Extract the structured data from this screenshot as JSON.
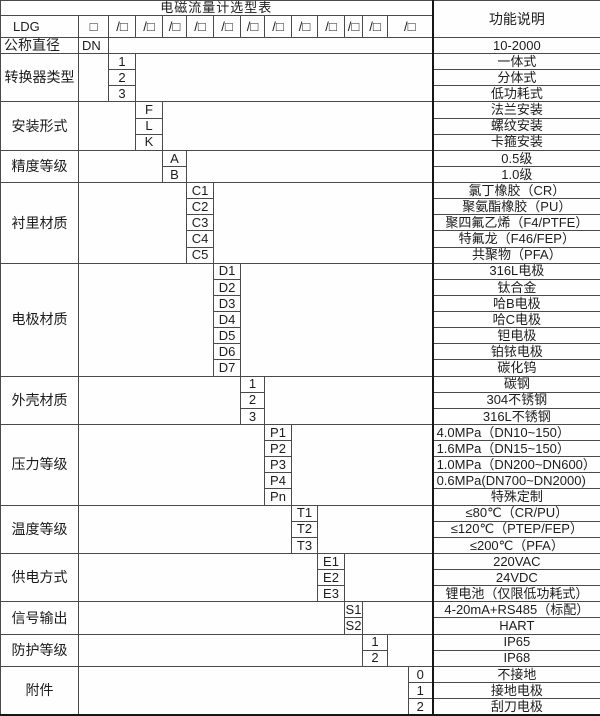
{
  "title": "电磁流量计选型表",
  "function_header": "功能说明",
  "model_row": {
    "prefix": "LDG",
    "box": "□",
    "slot": "/□",
    "slot_count": 12
  },
  "diameter": {
    "label": "公称直径",
    "code": "DN",
    "desc": "10-2000"
  },
  "groups": [
    {
      "label": "转换器类型",
      "col": 1,
      "items": [
        {
          "code": "1",
          "desc": "一体式"
        },
        {
          "code": "2",
          "desc": "分体式"
        },
        {
          "code": "3",
          "desc": "低功耗式"
        }
      ]
    },
    {
      "label": "安装形式",
      "col": 2,
      "items": [
        {
          "code": "F",
          "desc": "法兰安装"
        },
        {
          "code": "L",
          "desc": "螺纹安装"
        },
        {
          "code": "K",
          "desc": "卡箍安装"
        }
      ]
    },
    {
      "label": "精度等级",
      "col": 3,
      "items": [
        {
          "code": "A",
          "desc": "0.5级"
        },
        {
          "code": "B",
          "desc": "1.0级"
        }
      ]
    },
    {
      "label": "衬里材质",
      "col": 4,
      "items": [
        {
          "code": "C1",
          "desc": "氯丁橡胶（CR）"
        },
        {
          "code": "C2",
          "desc": "聚氨酯橡胶（PU）"
        },
        {
          "code": "C3",
          "desc": "聚四氟乙烯（F4/PTFE）"
        },
        {
          "code": "C4",
          "desc": "特氟龙（F46/FEP）"
        },
        {
          "code": "C5",
          "desc": "共聚物（PFA）"
        }
      ]
    },
    {
      "label": "电极材质",
      "col": 5,
      "items": [
        {
          "code": "D1",
          "desc": "316L电极"
        },
        {
          "code": "D2",
          "desc": "钛合金"
        },
        {
          "code": "D3",
          "desc": "哈B电极"
        },
        {
          "code": "D4",
          "desc": "哈C电极"
        },
        {
          "code": "D5",
          "desc": "钽电极"
        },
        {
          "code": "D6",
          "desc": "铂铱电极"
        },
        {
          "code": "D7",
          "desc": "碳化钨"
        }
      ]
    },
    {
      "label": "外壳材质",
      "col": 6,
      "items": [
        {
          "code": "1",
          "desc": "碳钢"
        },
        {
          "code": "2",
          "desc": "304不锈钢"
        },
        {
          "code": "3",
          "desc": "316L不锈钢"
        }
      ]
    },
    {
      "label": "压力等级",
      "col": 7,
      "items": [
        {
          "code": "P1",
          "desc": "4.0MPa（DN10~150）",
          "align": "left"
        },
        {
          "code": "P2",
          "desc": "1.6MPa（DN15~150）",
          "align": "left"
        },
        {
          "code": "P3",
          "desc": "1.0MPa（DN200~DN600）",
          "align": "left"
        },
        {
          "code": "P4",
          "desc": "0.6MPa(DN700~DN2000)",
          "align": "left"
        },
        {
          "code": "Pn",
          "desc": "特殊定制"
        }
      ]
    },
    {
      "label": "温度等级",
      "col": 8,
      "items": [
        {
          "code": "T1",
          "desc": "≤80℃（CR/PU）"
        },
        {
          "code": "T2",
          "desc": "≤120℃（PTEP/FEP）"
        },
        {
          "code": "T3",
          "desc": "≤200℃（PFA）"
        }
      ]
    },
    {
      "label": "供电方式",
      "col": 9,
      "items": [
        {
          "code": "E1",
          "desc": "220VAC"
        },
        {
          "code": "E2",
          "desc": "24VDC"
        },
        {
          "code": "E3",
          "desc": "锂电池（仅限低功耗式）"
        }
      ]
    },
    {
      "label": "信号输出",
      "col": 10,
      "items": [
        {
          "code": "S1",
          "desc": "4-20mA+RS485（标配）"
        },
        {
          "code": "S2",
          "desc": "HART"
        }
      ]
    },
    {
      "label": "防护等级",
      "col": 11,
      "items": [
        {
          "code": "1",
          "desc": "IP65"
        },
        {
          "code": "2",
          "desc": "IP68"
        }
      ]
    },
    {
      "label": "附件",
      "col": 13,
      "items": [
        {
          "code": "0",
          "desc": "不接地"
        },
        {
          "code": "1",
          "desc": "接地电极"
        },
        {
          "code": "2",
          "desc": "刮刀电极"
        }
      ]
    }
  ],
  "colors": {
    "text": "#1c1c1c",
    "grid_line": "#4a4a4a",
    "heavy_line": "#161616",
    "background": "#ffffff"
  }
}
